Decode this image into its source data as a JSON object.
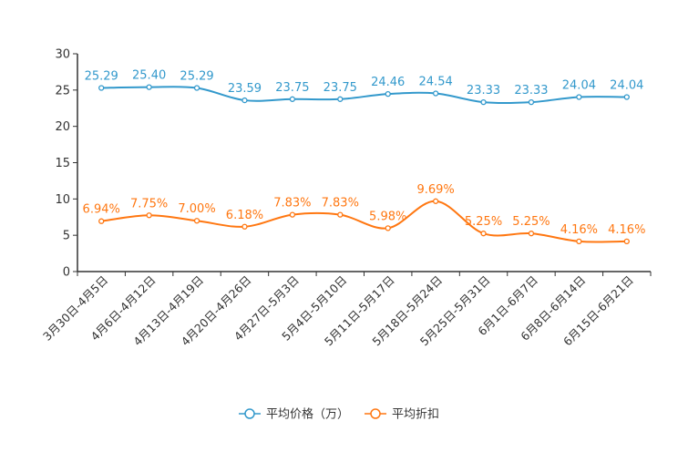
{
  "chart_data": {
    "type": "line",
    "title": "",
    "xlabel": "",
    "ylabel": "",
    "ylim": [
      0,
      30
    ],
    "yticks": [
      0,
      5,
      10,
      15,
      20,
      25,
      30
    ],
    "categories": [
      "3月30日-4月5日",
      "4月6日-4月12日",
      "4月13日-4月19日",
      "4月20日-4月26日",
      "4月27日-5月3日",
      "5月4日-5月10日",
      "5月11日-5月17日",
      "5月18日-5月24日",
      "5月25日-5月31日",
      "6月1日-6月7日",
      "6月8日-6月14日",
      "6月15日-6月21日"
    ],
    "series": [
      {
        "name": "平均价格（万）",
        "color": "#3399cc",
        "values": [
          25.29,
          25.4,
          25.29,
          23.59,
          23.75,
          23.75,
          24.46,
          24.54,
          23.33,
          23.33,
          24.04,
          24.04
        ],
        "labels": [
          "25.29",
          "25.40",
          "25.29",
          "23.59",
          "23.75",
          "23.75",
          "24.46",
          "24.54",
          "23.33",
          "23.33",
          "24.04",
          "24.04"
        ]
      },
      {
        "name": "平均折扣",
        "color": "#ff7711",
        "values": [
          6.94,
          7.75,
          7.0,
          6.18,
          7.83,
          7.83,
          5.98,
          9.69,
          5.25,
          5.25,
          4.16,
          4.16
        ],
        "labels": [
          "6.94%",
          "7.75%",
          "7.00%",
          "6.18%",
          "7.83%",
          "7.83%",
          "5.98%",
          "9.69%",
          "5.25%",
          "5.25%",
          "4.16%",
          "4.16%"
        ]
      }
    ],
    "legend_position": "bottom-center",
    "grid": false
  }
}
